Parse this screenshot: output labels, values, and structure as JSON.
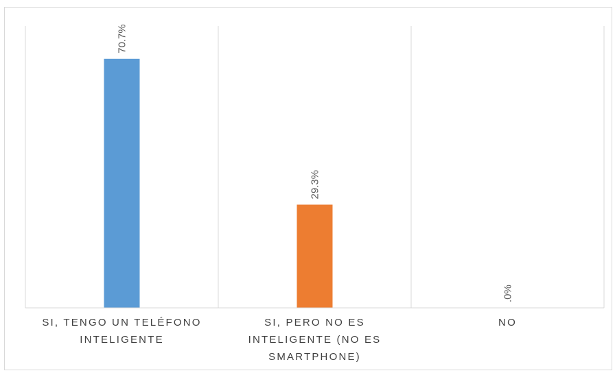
{
  "chart_data": {
    "type": "bar",
    "title": "",
    "xlabel": "",
    "ylabel": "",
    "ylim": [
      0,
      80
    ],
    "grid": "vertical category separators",
    "legend": "none",
    "categories": [
      [
        "SI, TENGO UN TELÉFONO",
        "INTELIGENTE"
      ],
      [
        "SI, PERO NO ES",
        "INTELIGENTE (NO ES",
        "SMARTPHONE)"
      ],
      [
        "NO"
      ]
    ],
    "values": [
      70.7,
      29.3,
      0.0
    ],
    "data_labels": [
      "70.7%",
      "29.3%",
      ".0%"
    ],
    "colors": [
      "#5b9bd5",
      "#ed7d31",
      "#a5a5a5"
    ]
  }
}
